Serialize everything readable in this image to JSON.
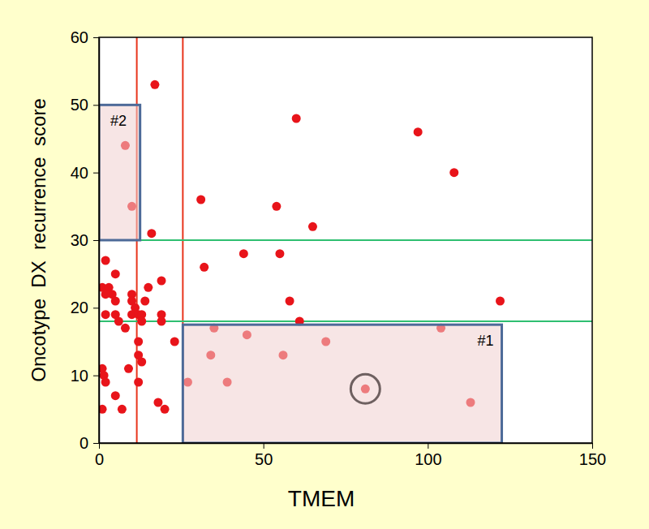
{
  "chart_data": {
    "type": "scatter",
    "x_label": "TMEM",
    "y_label": "Oncotype  DX  recurrence  score",
    "color": "#e8141a",
    "x": [
      17,
      8,
      10,
      16,
      60,
      97,
      108,
      31,
      54,
      65,
      32,
      44,
      55,
      58,
      61,
      122,
      35,
      45,
      69,
      104,
      34,
      56,
      27,
      39,
      81,
      113,
      2,
      1,
      3,
      4,
      2,
      5,
      5,
      2,
      5,
      6,
      8,
      10,
      10,
      11,
      10,
      12,
      13,
      14,
      15,
      13,
      12,
      13,
      12,
      12,
      9,
      19,
      19,
      19,
      23,
      18,
      20,
      7,
      5,
      1,
      1.5,
      2,
      1
    ],
    "values": [
      53,
      44,
      35,
      31,
      48,
      46,
      40,
      36,
      35,
      32,
      26,
      28,
      28,
      21,
      18,
      21,
      17,
      16,
      15,
      17,
      13,
      13,
      9,
      9,
      8,
      6,
      27,
      23,
      23,
      22,
      22,
      25,
      21,
      19,
      19,
      18,
      17,
      22,
      21,
      20,
      19,
      19,
      19,
      21,
      23,
      18,
      15,
      12,
      13,
      9,
      11,
      24,
      19,
      18,
      15,
      6,
      5,
      5,
      7,
      11,
      10,
      9,
      5
    ],
    "xlim": [
      0,
      150
    ],
    "xticks": [
      0,
      50,
      100,
      150
    ],
    "ylim": [
      0,
      60
    ],
    "yticks": [
      0,
      10,
      20,
      30,
      40,
      50,
      60
    ],
    "reference_lines": {
      "x": [
        11.5,
        25.5
      ],
      "y": [
        18,
        30
      ]
    },
    "regions": [
      {
        "label": "#1",
        "x": [
          25.5,
          122.5
        ],
        "y": [
          0,
          17.5
        ]
      },
      {
        "label": "#2",
        "x": [
          0,
          12.5
        ],
        "y": [
          30,
          50
        ]
      }
    ],
    "highlight": {
      "x": 81,
      "y": 8
    }
  }
}
